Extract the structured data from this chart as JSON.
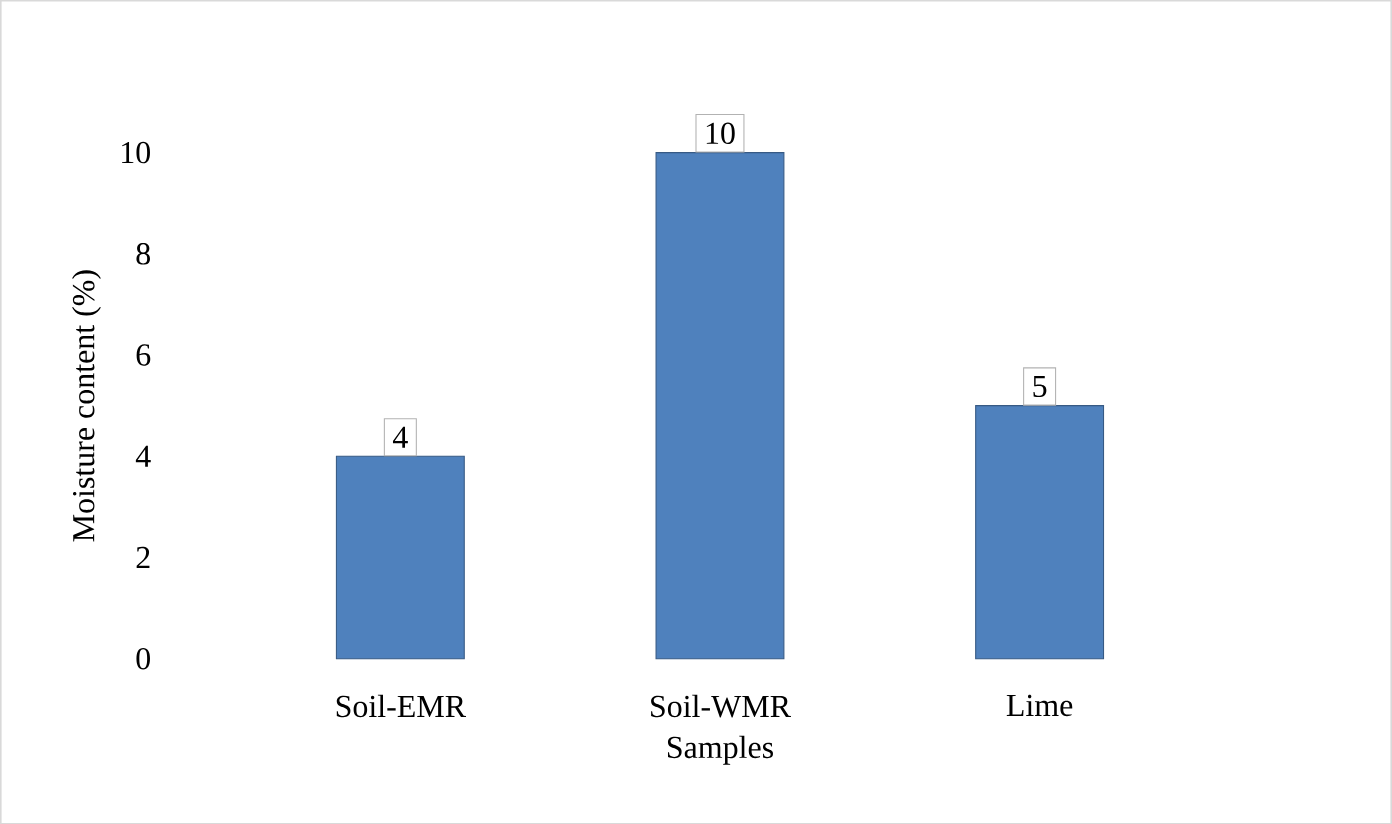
{
  "chart_data": {
    "type": "bar",
    "xlabel": "Samples",
    "ylabel": "Moisture  content  (%)",
    "categories": [
      "Soil-EMR",
      "Soil-WMR",
      "Lime"
    ],
    "values": [
      4,
      10,
      5
    ],
    "color": "#4f81bd",
    "ylim": [
      0,
      10
    ],
    "yticks": [
      0,
      2,
      4,
      6,
      8,
      10
    ],
    "data_labels": true
  }
}
